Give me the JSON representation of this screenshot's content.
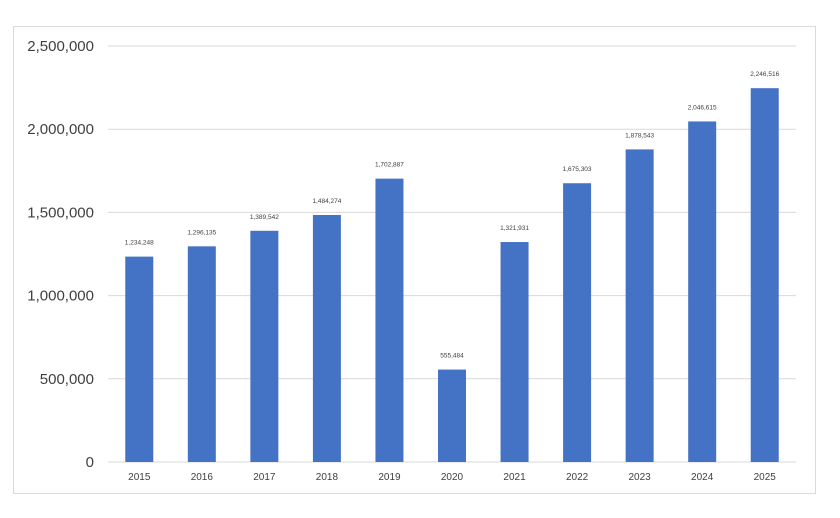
{
  "chart_data": {
    "type": "bar",
    "categories": [
      "2015",
      "2016",
      "2017",
      "2018",
      "2019",
      "2020",
      "2021",
      "2022",
      "2023",
      "2024",
      "2025"
    ],
    "values": [
      1234248,
      1296135,
      1389542,
      1484274,
      1702887,
      555484,
      1321931,
      1675303,
      1878543,
      2046615,
      2246516
    ],
    "data_labels": [
      "1,234,248",
      "1,296,135",
      "1,389,542",
      "1,484,274",
      "1,702,887",
      "555,484",
      "1,321,931",
      "1,675,303",
      "1,878,543",
      "2,046,615",
      "2,246,516"
    ],
    "yticks": [
      0,
      500000,
      1000000,
      1500000,
      2000000,
      2500000
    ],
    "ytick_labels": [
      "0",
      "500,000",
      "1,000,000",
      "1,500,000",
      "2,000,000",
      "2,500,000"
    ],
    "ylim": [
      0,
      2500000
    ],
    "grid": true,
    "legend": "none",
    "colors": {
      "bar": "#4472c4",
      "grid": "#d9d9d9",
      "text": "#404040"
    }
  }
}
